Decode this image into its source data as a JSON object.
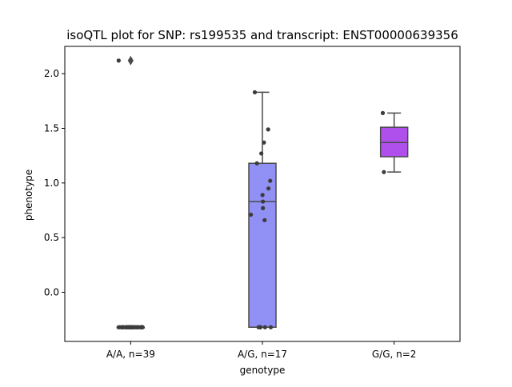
{
  "chart_data": {
    "type": "box",
    "title": "isoQTL plot for SNP: rs199535 and transcript: ENST00000639356",
    "xlabel": "genotype",
    "ylabel": "phenotype",
    "ylim": [
      -0.45,
      2.25
    ],
    "yticks": [
      0.0,
      0.5,
      1.0,
      1.5,
      2.0
    ],
    "ytick_labels": [
      "0.0",
      "0.5",
      "1.0",
      "1.5",
      "2.0"
    ],
    "grid": false,
    "legend": "none",
    "categories": [
      "A/A, n=39",
      "A/G, n=17",
      "G/G, n=2"
    ],
    "boxes": [
      {
        "label": "A/A, n=39",
        "q1": -0.32,
        "median": -0.32,
        "q3": -0.32,
        "whisker_low": -0.32,
        "whisker_high": -0.32,
        "outliers": [
          2.12
        ],
        "color": "#3f3f8f",
        "points": [
          2.12,
          -0.32,
          -0.32,
          -0.32,
          -0.32,
          -0.32,
          -0.32,
          -0.32,
          -0.32,
          -0.32,
          -0.32,
          -0.32,
          -0.32,
          -0.32,
          -0.32,
          -0.32,
          -0.32,
          -0.32,
          -0.32,
          -0.32,
          -0.32,
          -0.32,
          -0.32,
          -0.32,
          -0.32,
          -0.32,
          -0.32,
          -0.32,
          -0.32,
          -0.32,
          -0.32,
          -0.32,
          -0.32,
          -0.32,
          -0.32,
          -0.32,
          -0.32,
          -0.32,
          -0.32
        ]
      },
      {
        "label": "A/G, n=17",
        "q1": -0.32,
        "median": 0.83,
        "q3": 1.18,
        "whisker_low": -0.32,
        "whisker_high": 1.83,
        "outliers": [],
        "color": "#9090f5",
        "points": [
          1.83,
          1.49,
          1.37,
          1.27,
          1.18,
          1.02,
          0.95,
          0.89,
          0.83,
          0.77,
          0.71,
          0.66,
          -0.32,
          -0.32,
          -0.32,
          -0.32,
          -0.32
        ]
      },
      {
        "label": "G/G, n=2",
        "q1": 1.24,
        "median": 1.37,
        "q3": 1.51,
        "whisker_low": 1.1,
        "whisker_high": 1.64,
        "outliers": [],
        "color": "#b050ec",
        "points": [
          1.64,
          1.1
        ]
      }
    ]
  }
}
